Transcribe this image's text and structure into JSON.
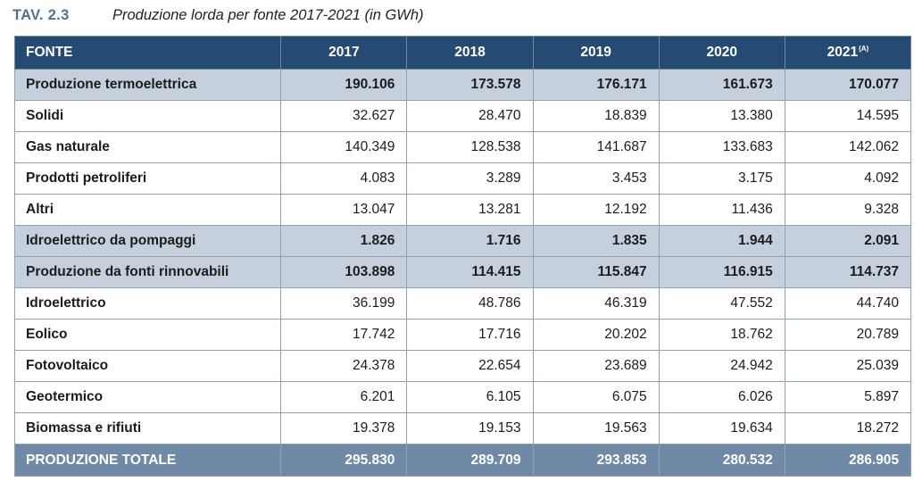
{
  "caption": {
    "label": "TAV. 2.3",
    "title": "Produzione lorda per fonte 2017-2021 (in GWh)"
  },
  "table": {
    "header": {
      "fonte": "FONTE",
      "years": [
        "2017",
        "2018",
        "2019",
        "2020",
        "2021"
      ],
      "last_note": "(A)"
    },
    "rows": [
      {
        "label": "Produzione termoelettrica",
        "kind": "sub",
        "values": [
          "190.106",
          "173.578",
          "176.171",
          "161.673",
          "170.077"
        ]
      },
      {
        "label": "Solidi",
        "kind": "plain",
        "values": [
          "32.627",
          "28.470",
          "18.839",
          "13.380",
          "14.595"
        ]
      },
      {
        "label": "Gas naturale",
        "kind": "plain",
        "values": [
          "140.349",
          "128.538",
          "141.687",
          "133.683",
          "142.062"
        ]
      },
      {
        "label": "Prodotti petroliferi",
        "kind": "plain",
        "values": [
          "4.083",
          "3.289",
          "3.453",
          "3.175",
          "4.092"
        ]
      },
      {
        "label": "Altri",
        "kind": "plain",
        "values": [
          "13.047",
          "13.281",
          "12.192",
          "11.436",
          "9.328"
        ]
      },
      {
        "label": "Idroelettrico da pompaggi",
        "kind": "sub",
        "values": [
          "1.826",
          "1.716",
          "1.835",
          "1.944",
          "2.091"
        ]
      },
      {
        "label": "Produzione da fonti rinnovabili",
        "kind": "sub",
        "values": [
          "103.898",
          "114.415",
          "115.847",
          "116.915",
          "114.737"
        ]
      },
      {
        "label": "Idroelettrico",
        "kind": "plain",
        "values": [
          "36.199",
          "48.786",
          "46.319",
          "47.552",
          "44.740"
        ]
      },
      {
        "label": "Eolico",
        "kind": "plain",
        "values": [
          "17.742",
          "17.716",
          "20.202",
          "18.762",
          "20.789"
        ]
      },
      {
        "label": "Fotovoltaico",
        "kind": "plain",
        "values": [
          "24.378",
          "22.654",
          "23.689",
          "24.942",
          "25.039"
        ]
      },
      {
        "label": "Geotermico",
        "kind": "plain",
        "values": [
          "6.201",
          "6.105",
          "6.075",
          "6.026",
          "5.897"
        ]
      },
      {
        "label": "Biomassa e rifiuti",
        "kind": "plain",
        "values": [
          "19.378",
          "19.153",
          "19.563",
          "19.634",
          "18.272"
        ]
      }
    ],
    "total": {
      "label": "PRODUZIONE TOTALE",
      "values": [
        "295.830",
        "289.709",
        "293.853",
        "280.532",
        "286.905"
      ]
    }
  }
}
